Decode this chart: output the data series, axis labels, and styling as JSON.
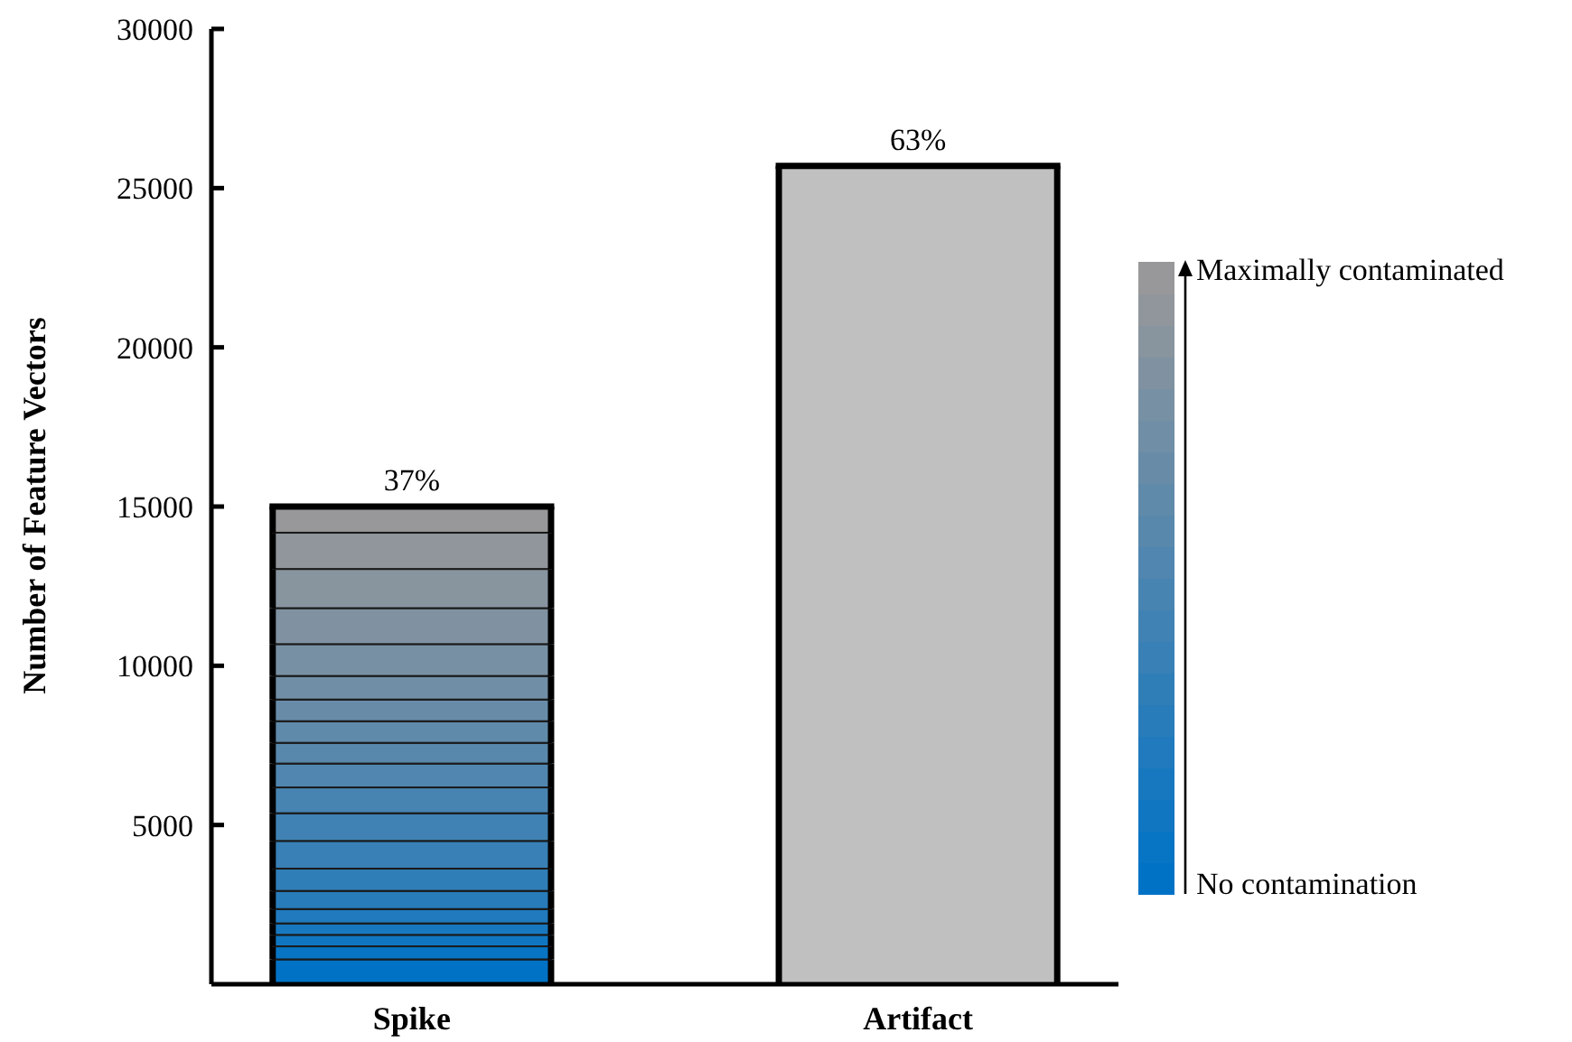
{
  "chart_data": {
    "type": "bar",
    "stacked": true,
    "ylabel": "Number of Feature Vectors",
    "categories": [
      "Spike",
      "Artifact"
    ],
    "ylim": [
      0,
      30000
    ],
    "yticks": [
      5000,
      10000,
      15000,
      20000,
      25000,
      30000
    ],
    "series": [
      {
        "color": "#0072c6",
        "values": [
          780,
          null
        ]
      },
      {
        "color": "#0874c4",
        "values": [
          410,
          null
        ]
      },
      {
        "color": "#1076c1",
        "values": [
          360,
          null
        ]
      },
      {
        "color": "#1878bf",
        "values": [
          360,
          null
        ]
      },
      {
        "color": "#207abd",
        "values": [
          450,
          null
        ]
      },
      {
        "color": "#287cba",
        "values": [
          570,
          null
        ]
      },
      {
        "color": "#307eb8",
        "values": [
          700,
          null
        ]
      },
      {
        "color": "#3880b6",
        "values": [
          870,
          null
        ]
      },
      {
        "color": "#4082b3",
        "values": [
          870,
          null
        ]
      },
      {
        "color": "#4884b1",
        "values": [
          810,
          null
        ]
      },
      {
        "color": "#5086af",
        "values": [
          750,
          null
        ]
      },
      {
        "color": "#5888ac",
        "values": [
          650,
          null
        ]
      },
      {
        "color": "#608aaa",
        "values": [
          680,
          null
        ]
      },
      {
        "color": "#688ca8",
        "values": [
          680,
          null
        ]
      },
      {
        "color": "#708ea5",
        "values": [
          740,
          null
        ]
      },
      {
        "color": "#7890a3",
        "values": [
          1000,
          null
        ]
      },
      {
        "color": "#8092a1",
        "values": [
          1130,
          null
        ]
      },
      {
        "color": "#88949e",
        "values": [
          1230,
          null
        ]
      },
      {
        "color": "#90969c",
        "values": [
          1140,
          null
        ]
      },
      {
        "color": "#98989a",
        "values": [
          820,
          null
        ]
      },
      {
        "color": "#c0c0c0",
        "values": [
          null,
          25700
        ]
      }
    ],
    "annotations": [
      {
        "text": "37%",
        "x": "Spike",
        "y": 15000
      },
      {
        "text": "63%",
        "x": "Artifact",
        "y": 25700
      },
      "Maximally contaminated",
      "No contamination"
    ]
  }
}
